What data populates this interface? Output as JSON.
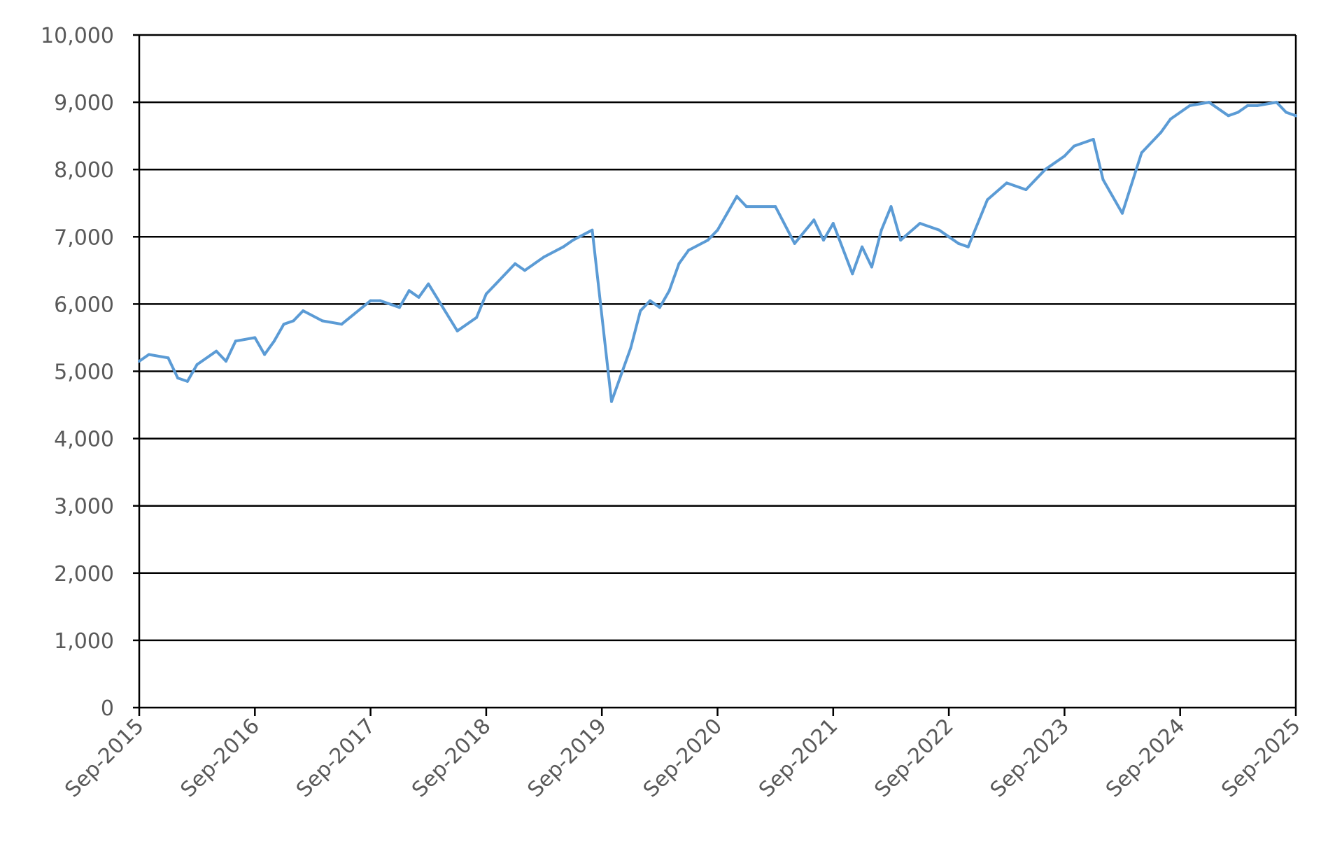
{
  "chart_data": {
    "type": "line",
    "title": "",
    "xlabel": "",
    "ylabel": "",
    "ylim": [
      0,
      10000
    ],
    "y_ticks": [
      "0",
      "1,000",
      "2,000",
      "3,000",
      "4,000",
      "5,000",
      "6,000",
      "7,000",
      "8,000",
      "9,000",
      "10,000"
    ],
    "x_ticks": [
      "Sep-2015",
      "Sep-2016",
      "Sep-2017",
      "Sep-2018",
      "Sep-2019",
      "Sep-2020",
      "Sep-2021",
      "Sep-2022",
      "Sep-2023",
      "Sep-2024",
      "Sep-2025"
    ],
    "grid": "horizontal",
    "legend": "none",
    "line_color": "#5B9BD5",
    "series": [
      {
        "x": [
          "2015-09",
          "2015-10",
          "2015-12",
          "2016-01",
          "2016-02",
          "2016-03",
          "2016-05",
          "2016-06",
          "2016-07",
          "2016-09",
          "2016-10",
          "2016-11",
          "2016-12",
          "2017-01",
          "2017-02",
          "2017-04",
          "2017-06",
          "2017-09",
          "2017-10",
          "2017-12",
          "2018-01",
          "2018-02",
          "2018-03",
          "2018-06",
          "2018-08",
          "2018-09",
          "2018-10",
          "2018-12",
          "2019-01",
          "2019-03",
          "2019-05",
          "2019-06",
          "2019-08",
          "2019-10",
          "2019-12",
          "2020-01",
          "2020-02",
          "2020-03",
          "2020-04",
          "2020-05",
          "2020-06",
          "2020-08",
          "2020-09",
          "2020-10",
          "2020-11",
          "2020-12",
          "2021-03",
          "2021-05",
          "2021-07",
          "2021-08",
          "2021-09",
          "2021-11",
          "2021-12",
          "2022-01",
          "2022-02",
          "2022-03",
          "2022-04",
          "2022-06",
          "2022-07",
          "2022-08",
          "2022-09",
          "2022-10",
          "2022-11",
          "2023-01",
          "2023-03",
          "2023-05",
          "2023-07",
          "2023-09",
          "2023-10",
          "2023-12",
          "2024-01",
          "2024-03",
          "2024-05",
          "2024-07",
          "2024-08",
          "2024-10",
          "2024-12",
          "2025-02",
          "2025-03",
          "2025-04",
          "2025-05",
          "2025-07",
          "2025-08",
          "2025-09"
        ],
        "y": [
          5150,
          5250,
          5200,
          4900,
          4850,
          5100,
          5300,
          5150,
          5450,
          5500,
          5250,
          5450,
          5700,
          5750,
          5900,
          5750,
          5700,
          6050,
          6050,
          5950,
          6200,
          6100,
          6300,
          5600,
          5800,
          6150,
          6300,
          6600,
          6500,
          6700,
          6850,
          6950,
          7100,
          4550,
          5350,
          5900,
          6050,
          5950,
          6200,
          6600,
          6800,
          6950,
          7100,
          7350,
          7600,
          7450,
          7450,
          6900,
          7250,
          6950,
          7200,
          6450,
          6850,
          6550,
          7100,
          7450,
          6950,
          7200,
          7150,
          7100,
          7000,
          6900,
          6850,
          7550,
          7800,
          7700,
          8000,
          8200,
          8350,
          8450,
          7850,
          7350,
          8250,
          8550,
          8750,
          8950,
          9000,
          8800,
          8850,
          8950,
          8950,
          9000,
          8850,
          8800
        ]
      }
    ]
  }
}
